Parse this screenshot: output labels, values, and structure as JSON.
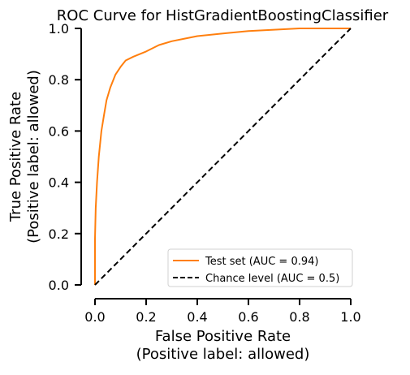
{
  "chart_data": {
    "type": "line",
    "title": "ROC Curve for HistGradientBoostingClassifier",
    "xlabel": "False Positive Rate\n(Positive label: allowed)",
    "ylabel": "True Positive Rate\n(Positive label: allowed)",
    "xlim": [
      0.0,
      1.0
    ],
    "ylim": [
      0.0,
      1.0
    ],
    "x_ticks": [
      "0.0",
      "0.2",
      "0.4",
      "0.6",
      "0.8",
      "1.0"
    ],
    "y_ticks": [
      "0.0",
      "0.2",
      "0.4",
      "0.6",
      "0.8",
      "1.0"
    ],
    "grid": false,
    "legend_position": "lower-right",
    "series": [
      {
        "name": "Test set (AUC = 0.94)",
        "color": "#ff7f0e",
        "style": "solid",
        "points": [
          [
            0.0,
            0.0
          ],
          [
            0.0,
            0.18
          ],
          [
            0.003,
            0.3
          ],
          [
            0.008,
            0.4
          ],
          [
            0.015,
            0.5
          ],
          [
            0.025,
            0.6
          ],
          [
            0.035,
            0.66
          ],
          [
            0.045,
            0.72
          ],
          [
            0.06,
            0.77
          ],
          [
            0.08,
            0.82
          ],
          [
            0.1,
            0.85
          ],
          [
            0.12,
            0.875
          ],
          [
            0.15,
            0.89
          ],
          [
            0.2,
            0.91
          ],
          [
            0.25,
            0.935
          ],
          [
            0.3,
            0.95
          ],
          [
            0.35,
            0.96
          ],
          [
            0.4,
            0.97
          ],
          [
            0.5,
            0.98
          ],
          [
            0.6,
            0.99
          ],
          [
            0.7,
            0.995
          ],
          [
            0.8,
            1.0
          ],
          [
            1.0,
            1.0
          ]
        ]
      },
      {
        "name": "Chance level (AUC = 0.5)",
        "color": "#000000",
        "style": "dashed",
        "points": [
          [
            0.0,
            0.0
          ],
          [
            1.0,
            1.0
          ]
        ]
      }
    ]
  }
}
